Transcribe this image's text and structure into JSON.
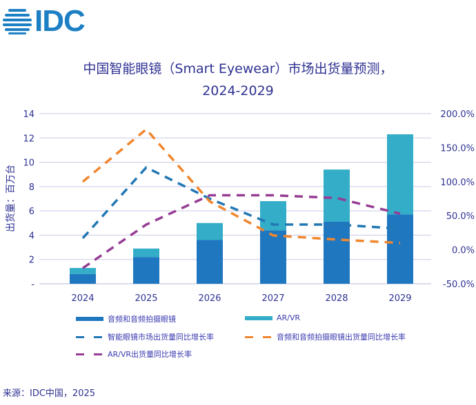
{
  "logo": {
    "text": "IDC",
    "color": "#1d7fc4"
  },
  "title": {
    "line1": "中国智能眼镜（Smart Eyewear）市场出货量预测，",
    "line2": "2024-2029"
  },
  "source": "来源：IDC中国，2025",
  "chart_data": {
    "type": "bar+line",
    "categories": [
      "2024",
      "2025",
      "2026",
      "2027",
      "2028",
      "2029"
    ],
    "ylabel": "出货量：百万台",
    "ylim": [
      0,
      14
    ],
    "yticks": [
      "-",
      "2",
      "4",
      "6",
      "8",
      "10",
      "12",
      "14"
    ],
    "y2lim": [
      -50,
      200
    ],
    "y2ticks": [
      "-50.0%",
      "0.0%",
      "50.0%",
      "100.0%",
      "150.0%",
      "200.0%"
    ],
    "grid": true,
    "legend_position": "bottom",
    "bars": [
      {
        "name": "音频和音频拍摄眼镜",
        "color": "#1f77c0",
        "values": [
          0.8,
          2.2,
          3.6,
          4.4,
          5.1,
          5.7
        ]
      },
      {
        "name": "AR/VR",
        "color": "#33adc8",
        "values": [
          0.5,
          0.7,
          1.4,
          2.4,
          4.3,
          6.6
        ]
      }
    ],
    "lines": [
      {
        "name": "智能眼镜市场出货量同比增长率",
        "color": "#2277b4",
        "axis": "right",
        "values": [
          17,
          121,
          75,
          37,
          37,
          31
        ]
      },
      {
        "name": "音频和音频拍摄眼镜出货量同比增长率",
        "color": "#f0862e",
        "axis": "right",
        "values": [
          100,
          177,
          71,
          21,
          15,
          10
        ]
      },
      {
        "name": "AR/VR出货量同比增长率",
        "color": "#963c94",
        "axis": "right",
        "values": [
          -27,
          37,
          80,
          80,
          76,
          53
        ]
      }
    ]
  }
}
